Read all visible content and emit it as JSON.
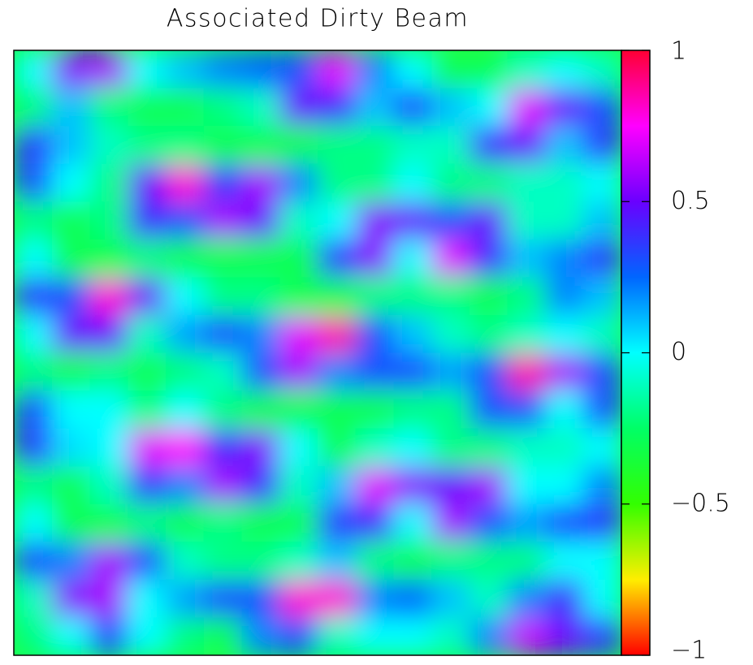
{
  "chart_data": {
    "type": "heatmap",
    "title": "Associated Dirty Beam",
    "zlim": [
      -1,
      1
    ],
    "zticks": [
      {
        "value": -1,
        "label": "−1"
      },
      {
        "value": -0.5,
        "label": "−0.5"
      },
      0,
      0.5,
      1
    ],
    "colormap": [
      "#ff0000",
      "#ffee00",
      "#33ff00",
      "#00ff66",
      "#00ffff",
      "#0066ff",
      "#6a00ff",
      "#ff00ff",
      "#ff0033"
    ],
    "z": [
      [
        0.0,
        0.55,
        0.6,
        0.0,
        0.1,
        0.2,
        0.25,
        0.3,
        0.7,
        0.2,
        0.0,
        -0.3,
        -0.3,
        -0.1,
        0.0,
        -0.1
      ],
      [
        -0.2,
        0.1,
        -0.2,
        -0.3,
        -0.3,
        -0.2,
        -0.1,
        0.5,
        0.4,
        0.1,
        0.3,
        0.1,
        0.0,
        0.7,
        0.5,
        0.3
      ],
      [
        0.35,
        0.1,
        -0.1,
        -0.2,
        -0.2,
        -0.3,
        -0.3,
        -0.3,
        -0.2,
        -0.2,
        -0.1,
        -0.1,
        0.4,
        0.5,
        0.1,
        0.35
      ],
      [
        0.3,
        0.0,
        -0.2,
        0.5,
        0.8,
        0.35,
        0.6,
        0.2,
        -0.2,
        -0.2,
        0.0,
        -0.2,
        -0.2,
        -0.1,
        -0.1,
        0.0
      ],
      [
        -0.2,
        -0.3,
        -0.2,
        0.4,
        0.3,
        0.6,
        0.5,
        -0.1,
        0.0,
        0.55,
        0.5,
        0.3,
        0.5,
        -0.1,
        -0.1,
        0.1
      ],
      [
        0.0,
        -0.3,
        -0.3,
        -0.2,
        -0.3,
        -0.3,
        -0.3,
        -0.3,
        0.35,
        0.55,
        0.0,
        0.7,
        0.4,
        0.1,
        0.2,
        0.35
      ],
      [
        0.35,
        0.3,
        0.8,
        0.5,
        0.0,
        -0.2,
        -0.2,
        -0.3,
        -0.3,
        -0.2,
        -0.2,
        -0.2,
        -0.3,
        -0.2,
        0.2,
        0.1
      ],
      [
        0.0,
        0.5,
        0.5,
        -0.1,
        0.15,
        0.3,
        0.2,
        0.7,
        0.85,
        0.3,
        0.1,
        -0.1,
        -0.2,
        -0.1,
        0.0,
        -0.1
      ],
      [
        -0.2,
        -0.3,
        -0.2,
        -0.3,
        -0.2,
        -0.1,
        0.3,
        0.6,
        0.2,
        0.3,
        0.3,
        0.15,
        0.3,
        0.85,
        0.6,
        0.3
      ],
      [
        0.3,
        0.0,
        0.0,
        -0.2,
        0.0,
        -0.2,
        -0.3,
        -0.3,
        -0.3,
        -0.3,
        -0.2,
        -0.2,
        0.3,
        0.3,
        0.0,
        0.3
      ],
      [
        0.35,
        0.05,
        0.0,
        0.7,
        0.75,
        0.4,
        0.55,
        0.0,
        -0.3,
        -0.1,
        0.0,
        -0.2,
        -0.2,
        -0.1,
        -0.1,
        0.0
      ],
      [
        -0.2,
        -0.3,
        -0.1,
        0.35,
        0.2,
        0.6,
        0.4,
        -0.1,
        0.1,
        0.7,
        0.55,
        0.5,
        0.6,
        0.0,
        0.0,
        0.2
      ],
      [
        0.0,
        -0.3,
        -0.3,
        -0.2,
        -0.3,
        -0.2,
        -0.3,
        -0.3,
        0.35,
        0.4,
        0.0,
        0.6,
        0.3,
        0.15,
        0.3,
        0.35
      ],
      [
        0.3,
        0.2,
        0.6,
        0.3,
        -0.1,
        -0.2,
        -0.2,
        -0.1,
        0.1,
        -0.2,
        -0.3,
        -0.2,
        -0.2,
        -0.2,
        0.0,
        0.0
      ],
      [
        -0.1,
        0.55,
        0.6,
        0.0,
        0.15,
        0.3,
        0.3,
        0.8,
        0.8,
        0.2,
        0.25,
        0.1,
        -0.1,
        0.2,
        0.4,
        0.0
      ],
      [
        -0.2,
        0.0,
        0.3,
        0.0,
        -0.2,
        -0.3,
        0.2,
        0.3,
        -0.1,
        0.0,
        0.0,
        -0.1,
        0.2,
        0.65,
        0.5,
        0.35
      ]
    ]
  }
}
